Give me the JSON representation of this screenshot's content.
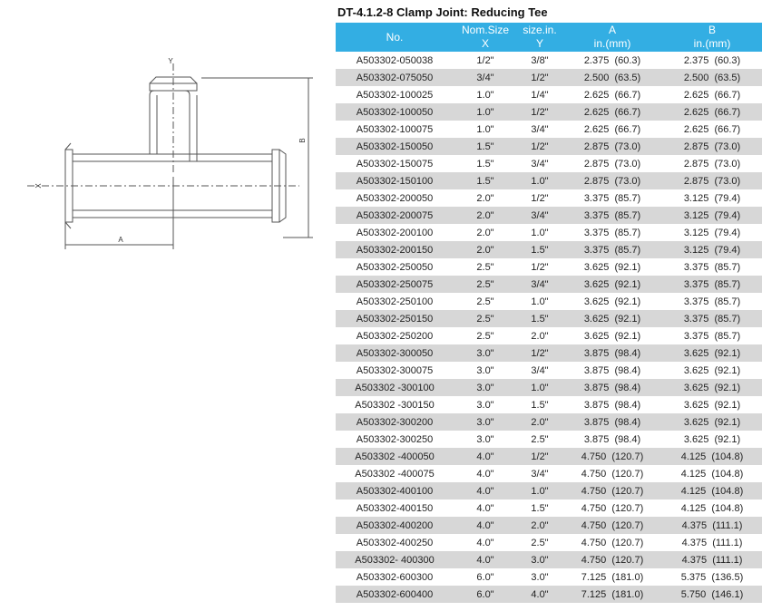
{
  "drawing": {
    "labels": {
      "y": "Y",
      "x": "X",
      "a": "A",
      "b": "B"
    }
  },
  "title": "DT-4.1.2-8 Clamp Joint: Reducing Tee",
  "table": {
    "header": {
      "no": "No.",
      "nom_size": "Nom.Size",
      "x": "X",
      "size_in": "size.in.",
      "y": "Y",
      "a": "A",
      "a_unit": "in.(mm)",
      "b": "B",
      "b_unit": "in.(mm)"
    },
    "rows": [
      [
        "A503302-050038",
        "1/2\"",
        "3/8\"",
        "2.375  (60.3)",
        "2.375  (60.3)"
      ],
      [
        "A503302-075050",
        "3/4\"",
        "1/2\"",
        "2.500  (63.5)",
        "2.500  (63.5)"
      ],
      [
        "A503302-100025",
        "1.0\"",
        "1/4\"",
        "2.625  (66.7)",
        "2.625  (66.7)"
      ],
      [
        "A503302-100050",
        "1.0\"",
        "1/2\"",
        "2.625  (66.7)",
        "2.625  (66.7)"
      ],
      [
        "A503302-100075",
        "1.0\"",
        "3/4\"",
        "2.625  (66.7)",
        "2.625  (66.7)"
      ],
      [
        "A503302-150050",
        "1.5\"",
        "1/2\"",
        "2.875  (73.0)",
        "2.875  (73.0)"
      ],
      [
        "A503302-150075",
        "1.5\"",
        "3/4\"",
        "2.875  (73.0)",
        "2.875  (73.0)"
      ],
      [
        "A503302-150100",
        "1.5\"",
        "1.0\"",
        "2.875  (73.0)",
        "2.875  (73.0)"
      ],
      [
        "A503302-200050",
        "2.0\"",
        "1/2\"",
        "3.375  (85.7)",
        "3.125  (79.4)"
      ],
      [
        "A503302-200075",
        "2.0\"",
        "3/4\"",
        "3.375  (85.7)",
        "3.125  (79.4)"
      ],
      [
        "A503302-200100",
        "2.0\"",
        "1.0\"",
        "3.375  (85.7)",
        "3.125  (79.4)"
      ],
      [
        "A503302-200150",
        "2.0\"",
        "1.5\"",
        "3.375  (85.7)",
        "3.125  (79.4)"
      ],
      [
        "A503302-250050",
        "2.5\"",
        "1/2\"",
        "3.625  (92.1)",
        "3.375  (85.7)"
      ],
      [
        "A503302-250075",
        "2.5\"",
        "3/4\"",
        "3.625  (92.1)",
        "3.375  (85.7)"
      ],
      [
        "A503302-250100",
        "2.5\"",
        "1.0\"",
        "3.625  (92.1)",
        "3.375  (85.7)"
      ],
      [
        "A503302-250150",
        "2.5\"",
        "1.5\"",
        "3.625  (92.1)",
        "3.375  (85.7)"
      ],
      [
        "A503302-250200",
        "2.5\"",
        "2.0\"",
        "3.625  (92.1)",
        "3.375  (85.7)"
      ],
      [
        "A503302-300050",
        "3.0\"",
        "1/2\"",
        "3.875  (98.4)",
        "3.625  (92.1)"
      ],
      [
        "A503302-300075",
        "3.0\"",
        "3/4\"",
        "3.875  (98.4)",
        "3.625  (92.1)"
      ],
      [
        "A503302 -300100",
        "3.0\"",
        "1.0\"",
        "3.875  (98.4)",
        "3.625  (92.1)"
      ],
      [
        "A503302 -300150",
        "3.0\"",
        "1.5\"",
        "3.875  (98.4)",
        "3.625  (92.1)"
      ],
      [
        "A503302-300200",
        "3.0\"",
        "2.0\"",
        "3.875  (98.4)",
        "3.625  (92.1)"
      ],
      [
        "A503302-300250",
        "3.0\"",
        "2.5\"",
        "3.875  (98.4)",
        "3.625  (92.1)"
      ],
      [
        "A503302 -400050",
        "4.0\"",
        "1/2\"",
        "4.750  (120.7)",
        "4.125  (104.8)"
      ],
      [
        "A503302 -400075",
        "4.0\"",
        "3/4\"",
        "4.750  (120.7)",
        "4.125  (104.8)"
      ],
      [
        "A503302-400100",
        "4.0\"",
        "1.0\"",
        "4.750  (120.7)",
        "4.125  (104.8)"
      ],
      [
        "A503302-400150",
        "4.0\"",
        "1.5\"",
        "4.750  (120.7)",
        "4.125  (104.8)"
      ],
      [
        "A503302-400200",
        "4.0\"",
        "2.0\"",
        "4.750  (120.7)",
        "4.375  (111.1)"
      ],
      [
        "A503302-400250",
        "4.0\"",
        "2.5\"",
        "4.750  (120.7)",
        "4.375  (111.1)"
      ],
      [
        "A503302- 400300",
        "4.0\"",
        "3.0\"",
        "4.750  (120.7)",
        "4.375  (111.1)"
      ],
      [
        "A503302-600300",
        "6.0\"",
        "3.0\"",
        "7.125  (181.0)",
        "5.375  (136.5)"
      ],
      [
        "A503302-600400",
        "6.0\"",
        "4.0\"",
        "7.125  (181.0)",
        "5.750  (146.1)"
      ]
    ]
  }
}
